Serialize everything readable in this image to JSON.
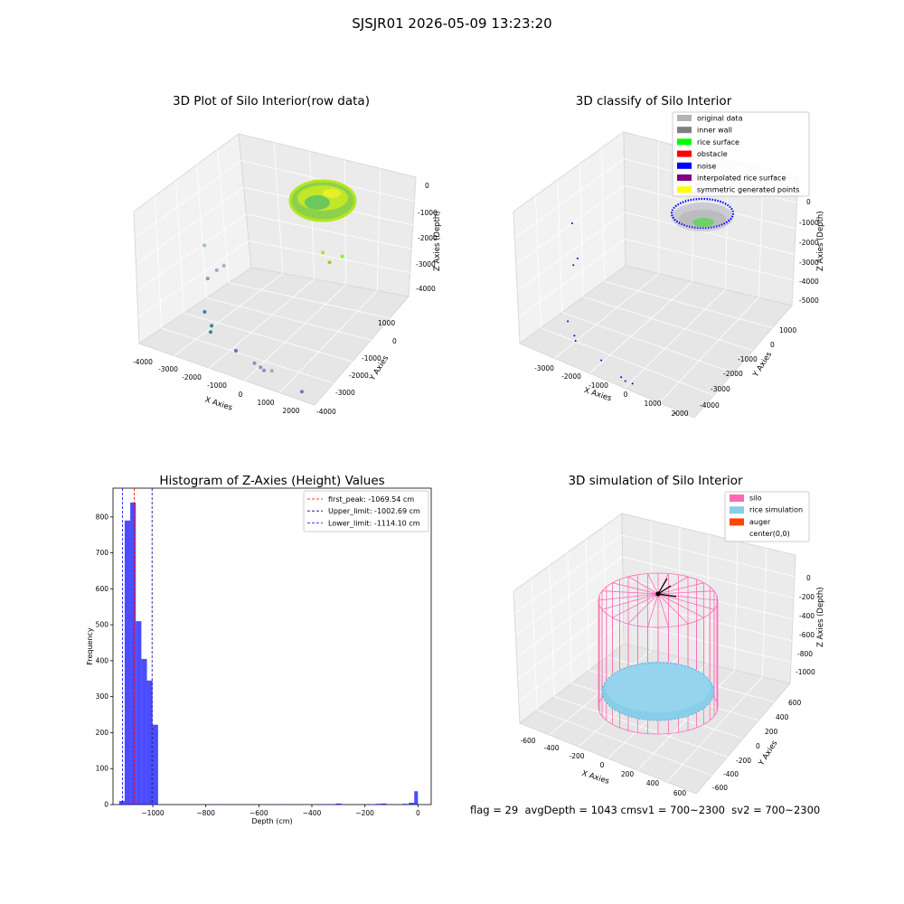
{
  "suptitle": "SJSJR01 2026-05-09 13:23:20",
  "status": {
    "flag": "flag = 29",
    "avg_depth": "avgDepth = 1043 cm",
    "sv1": "sv1 = 700~2300",
    "sv2": "sv2 = 700~2300"
  },
  "chart_data": [
    {
      "type": "scatter",
      "title": "3D Plot of Silo Interior(row data)",
      "xlabel": "X Axies",
      "ylabel": "Y Axies",
      "zlabel": "Z Axies (Depth)",
      "x_ticks": [
        "-4000",
        "-3000",
        "-2000",
        "-1000",
        "0",
        "1000",
        "2000"
      ],
      "y_ticks": [
        "1000",
        "0",
        "-1000",
        "-2000",
        "-3000",
        "-4000"
      ],
      "z_ticks": [
        "0",
        "-1000",
        "-2000",
        "-3000",
        "-4000"
      ],
      "grid": true,
      "series": [
        {
          "points": [
            {
              "x": 400,
              "y": -200,
              "z": -600,
              "color": "#9acd32"
            },
            {
              "x": 600,
              "y": 200,
              "z": -500,
              "color": "#7fff00"
            },
            {
              "x": -200,
              "y": 300,
              "z": -700,
              "color": "#b8e000"
            },
            {
              "x": -3900,
              "y": -800,
              "z": -1200,
              "color": "#a0c0c0"
            },
            {
              "x": -3300,
              "y": -600,
              "z": -1900,
              "color": "#a0b4c8"
            },
            {
              "x": -3500,
              "y": -700,
              "z": -2100,
              "color": "#a0a8c8"
            },
            {
              "x": -3700,
              "y": -900,
              "z": -2400,
              "color": "#7ca0c0"
            },
            {
              "x": -3400,
              "y": -1500,
              "z": -3300,
              "color": "#3c7eaa"
            },
            {
              "x": -3000,
              "y": -1700,
              "z": -3600,
              "color": "#2a8a8a"
            },
            {
              "x": -2900,
              "y": -1900,
              "z": -3700,
              "color": "#3a8a8a"
            },
            {
              "x": -1600,
              "y": -2400,
              "z": -3700,
              "color": "#7c68b0"
            },
            {
              "x": -700,
              "y": -2700,
              "z": -3700,
              "color": "#9a88c4"
            },
            {
              "x": -400,
              "y": -2800,
              "z": -3700,
              "color": "#9a88c4"
            },
            {
              "x": -200,
              "y": -2900,
              "z": -3700,
              "color": "#9a88c4"
            },
            {
              "x": 100,
              "y": -2900,
              "z": -3600,
              "color": "#b0a0d0"
            },
            {
              "x": 1500,
              "y": -3300,
              "z": -3700,
              "color": "#8070b0"
            }
          ]
        }
      ]
    },
    {
      "type": "scatter",
      "title": "3D classify of Silo Interior",
      "xlabel": "X Axies",
      "ylabel": "Y Axies",
      "zlabel": "Z Axies (Depth)",
      "x_ticks": [
        "-3000",
        "-2000",
        "-1000",
        "0",
        "1000",
        "2000"
      ],
      "y_ticks": [
        "1000",
        "0",
        "-1000",
        "-2000",
        "-3000",
        "-4000"
      ],
      "z_ticks": [
        "0",
        "-1000",
        "-2000",
        "-3000",
        "-4000",
        "-5000"
      ],
      "grid": true,
      "legend_position": "top-right",
      "legend": [
        {
          "label": "original data",
          "color": "#b3b3b3"
        },
        {
          "label": "inner wall",
          "color": "#808080"
        },
        {
          "label": "rice surface",
          "color": "#00ff00"
        },
        {
          "label": "obstacle",
          "color": "#ff0000"
        },
        {
          "label": "noise",
          "color": "#0000ff"
        },
        {
          "label": "interpolated rice surface",
          "color": "#800080"
        },
        {
          "label": "symmetric generated points",
          "color": "#ffff00"
        }
      ],
      "noise_points": [
        {
          "x": -3600,
          "y": -700,
          "z": -1100
        },
        {
          "x": -3300,
          "y": -900,
          "z": -2200
        },
        {
          "x": -3500,
          "y": -800,
          "z": -2600
        },
        {
          "x": -3200,
          "y": -1600,
          "z": -4200
        },
        {
          "x": -2700,
          "y": -2000,
          "z": -4500
        },
        {
          "x": -2800,
          "y": -1900,
          "z": -4400
        },
        {
          "x": -1600,
          "y": -2400,
          "z": -4500
        },
        {
          "x": -700,
          "y": -2800,
          "z": -4500
        },
        {
          "x": -500,
          "y": -2900,
          "z": -4500
        },
        {
          "x": -200,
          "y": -3000,
          "z": -4400
        },
        {
          "x": 1400,
          "y": -3300,
          "z": -4600
        }
      ]
    },
    {
      "type": "histogram",
      "title": "Histogram of Z-Axies (Height) Values",
      "xlabel": "Depth (cm)",
      "ylabel": "Frequency",
      "xlim": [
        -1150,
        50
      ],
      "ylim": [
        0,
        880
      ],
      "x_ticks": [
        -1000,
        -800,
        -600,
        -400,
        -200,
        0
      ],
      "x_tick_labels": [
        "−1000",
        "−800",
        "−600",
        "−400",
        "−200",
        "0"
      ],
      "y_ticks": [
        0,
        100,
        200,
        300,
        400,
        500,
        600,
        700,
        800
      ],
      "bar_color": "#0000ff",
      "bar_alpha": 0.7,
      "bins": [
        {
          "x0": -1127,
          "x1": -1106,
          "count": 10
        },
        {
          "x0": -1106,
          "x1": -1085,
          "count": 790
        },
        {
          "x0": -1085,
          "x1": -1064,
          "count": 840
        },
        {
          "x0": -1064,
          "x1": -1043,
          "count": 510
        },
        {
          "x0": -1043,
          "x1": -1022,
          "count": 405
        },
        {
          "x0": -1022,
          "x1": -1001,
          "count": 345
        },
        {
          "x0": -1001,
          "x1": -980,
          "count": 222
        },
        {
          "x0": -760,
          "x1": -739,
          "count": 1
        },
        {
          "x0": -520,
          "x1": -499,
          "count": 1
        },
        {
          "x0": -380,
          "x1": -359,
          "count": 1
        },
        {
          "x0": -359,
          "x1": -338,
          "count": 1
        },
        {
          "x0": -338,
          "x1": -317,
          "count": 1
        },
        {
          "x0": -310,
          "x1": -289,
          "count": 3
        },
        {
          "x0": -289,
          "x1": -268,
          "count": 1
        },
        {
          "x0": -200,
          "x1": -179,
          "count": 1
        },
        {
          "x0": -160,
          "x1": -139,
          "count": 2
        },
        {
          "x0": -139,
          "x1": -118,
          "count": 3
        },
        {
          "x0": -60,
          "x1": -39,
          "count": 2
        },
        {
          "x0": -35,
          "x1": -14,
          "count": 5
        },
        {
          "x0": -14,
          "x1": 0,
          "count": 37
        }
      ],
      "lines": [
        {
          "label": "first_peak: -1069.54 cm",
          "x": -1069.54,
          "color": "#ff0000"
        },
        {
          "label": "Upper_limit: -1002.69 cm",
          "x": -1002.69,
          "color": "#00008b"
        },
        {
          "label": "Lower_limit: -1114.10 cm",
          "x": -1114.1,
          "color": "#0000ff"
        }
      ],
      "legend_position": "top-right"
    },
    {
      "type": "surface",
      "title": "3D simulation of Silo Interior",
      "xlabel": "X Axies",
      "ylabel": "Y Axies",
      "zlabel": "Z Axies (Depth)",
      "x_ticks": [
        "-600",
        "-400",
        "-200",
        "0",
        "200",
        "400",
        "600"
      ],
      "y_ticks": [
        "600",
        "400",
        "200",
        "0",
        "-200",
        "-400",
        "-600"
      ],
      "z_ticks": [
        "0",
        "-200",
        "-400",
        "-600",
        "-800",
        "-1000"
      ],
      "grid": true,
      "legend_position": "top-right",
      "legend": [
        {
          "label": "silo",
          "color": "#ff69b4"
        },
        {
          "label": "rice simulation",
          "color": "#87ceeb"
        },
        {
          "label": "auger",
          "color": "#ff4500"
        },
        {
          "label": "center(0,0)",
          "color": ""
        }
      ]
    }
  ]
}
